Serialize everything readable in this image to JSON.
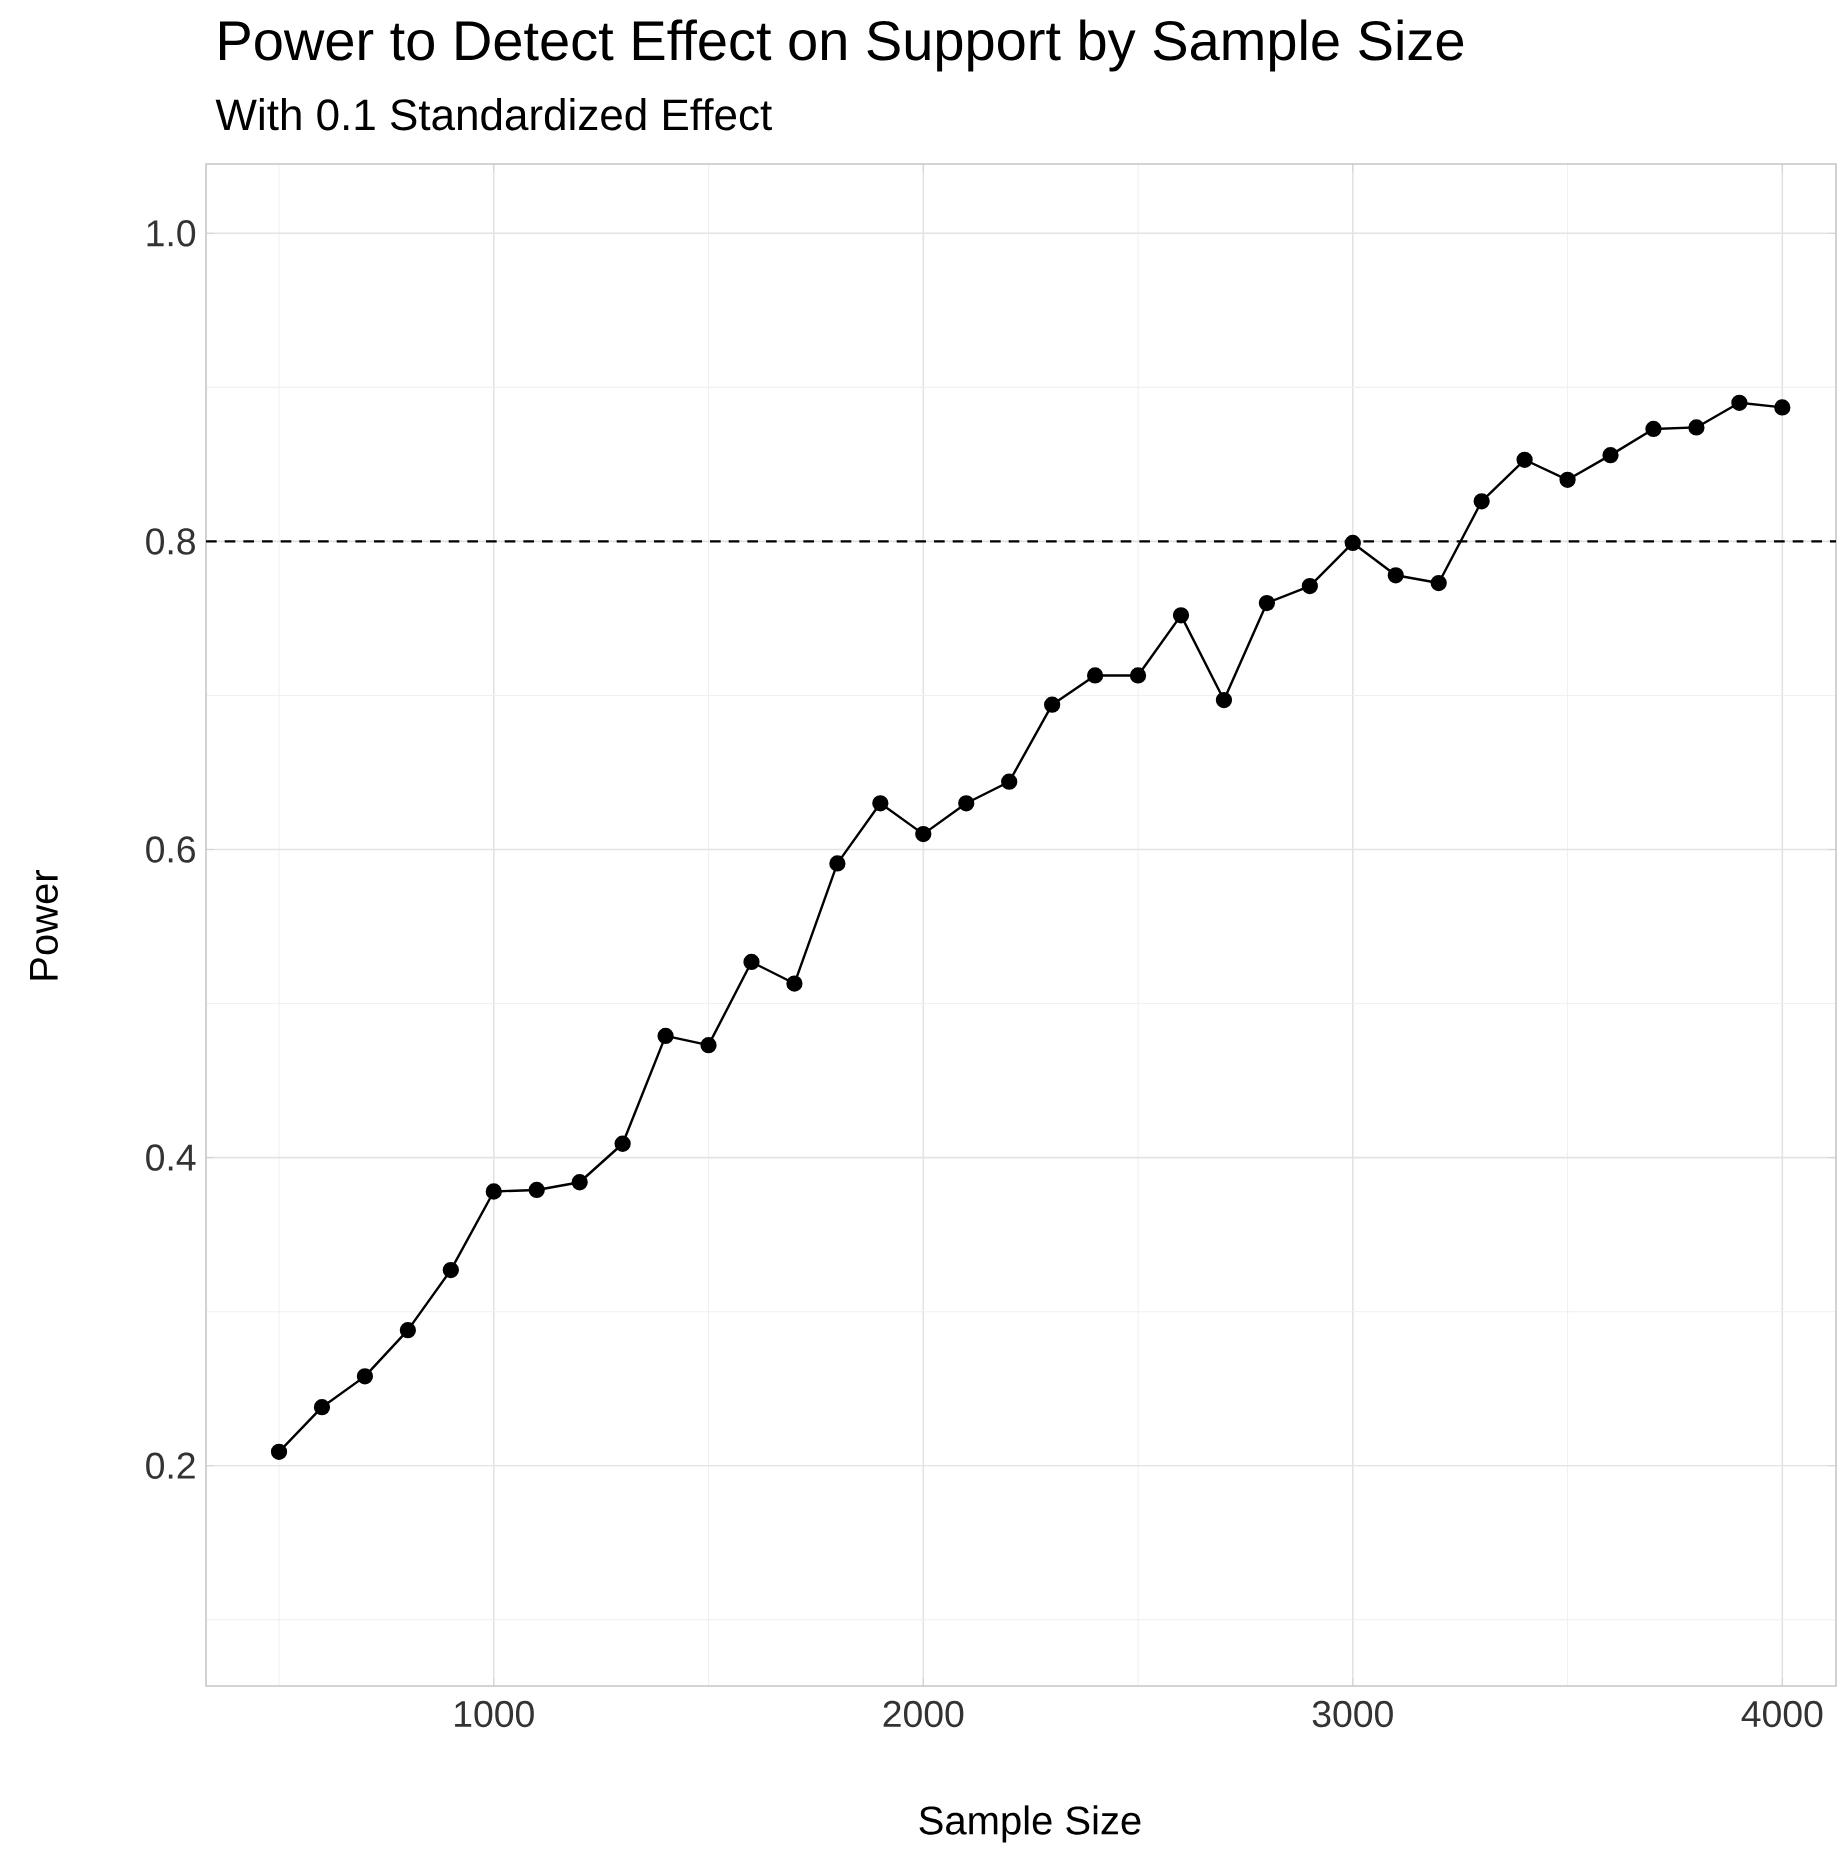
{
  "chart_data": {
    "type": "line",
    "title": "Power to Detect Effect on Support by Sample Size",
    "subtitle": "With 0.1 Standardized Effect",
    "xlabel": "Sample Size",
    "ylabel": "Power",
    "x": [
      500,
      600,
      700,
      800,
      900,
      1000,
      1100,
      1200,
      1300,
      1400,
      1500,
      1600,
      1700,
      1800,
      1900,
      2000,
      2100,
      2200,
      2300,
      2400,
      2500,
      2600,
      2700,
      2800,
      2900,
      3000,
      3100,
      3200,
      3300,
      3400,
      3500,
      3600,
      3700,
      3800,
      3900,
      4000
    ],
    "series": [
      {
        "color": "#000000",
        "values": [
          0.209,
          0.238,
          0.258,
          0.288,
          0.327,
          0.378,
          0.379,
          0.384,
          0.409,
          0.479,
          0.473,
          0.527,
          0.513,
          0.591,
          0.63,
          0.61,
          0.63,
          0.644,
          0.694,
          0.713,
          0.713,
          0.752,
          0.697,
          0.76,
          0.771,
          0.799,
          0.778,
          0.773,
          0.826,
          0.853,
          0.84,
          0.856,
          0.873,
          0.874,
          0.89,
          0.887
        ]
      }
    ],
    "xlim": [
      330,
      4125
    ],
    "ylim": [
      0.057,
      1.045
    ],
    "xticks": [
      1000,
      2000,
      3000,
      4000
    ],
    "yticks": [
      {
        "value": 0.2,
        "label": "0.2"
      },
      {
        "value": 0.4,
        "label": "0.4"
      },
      {
        "value": 0.6,
        "label": "0.6"
      },
      {
        "value": 0.8,
        "label": "0.8"
      },
      {
        "value": 1.0,
        "label": "1.0"
      }
    ],
    "ref_lines": [
      {
        "axis": "y",
        "value": 0.8,
        "color": "#000000",
        "line_style": "dashed"
      }
    ],
    "grid": true,
    "marker": "circle",
    "line_style": "solid"
  }
}
